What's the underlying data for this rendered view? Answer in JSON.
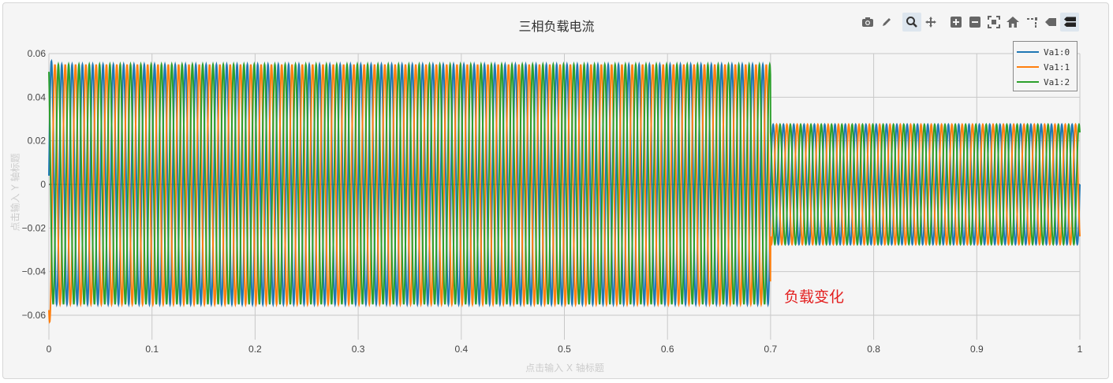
{
  "toolbar": {
    "icons": [
      "camera-icon",
      "pencil-icon",
      "zoom-icon",
      "pan-icon",
      "zoom-in-icon",
      "zoom-out-icon",
      "autoscale-icon",
      "home-icon",
      "spike-lines-icon",
      "hover-closest-icon",
      "hover-compare-icon"
    ],
    "active": [
      "zoom-icon",
      "hover-compare-icon"
    ]
  },
  "chart_data": {
    "type": "line",
    "title": "三相负载电流",
    "xlabel": "点击输入 X 轴标题",
    "ylabel": "点击输入 Y 轴标题",
    "xlim": [
      0,
      1
    ],
    "ylim": [
      -0.068,
      0.062
    ],
    "xticks": [
      "0",
      "0.1",
      "0.2",
      "0.3",
      "0.4",
      "0.5",
      "0.6",
      "0.7",
      "0.8",
      "0.9",
      "1"
    ],
    "xtick_values": [
      0,
      0.1,
      0.2,
      0.3,
      0.4,
      0.5,
      0.6,
      0.7,
      0.8,
      0.9,
      1
    ],
    "yticks": [
      "−0.06",
      "−0.04",
      "−0.02",
      "0",
      "0.02",
      "0.04",
      "0.06"
    ],
    "ytick_values": [
      -0.06,
      -0.04,
      -0.02,
      0,
      0.02,
      0.04,
      0.06
    ],
    "grid": true,
    "legend_position": "top-right",
    "frequency_hz": 100,
    "step_time": 0.7,
    "series": [
      {
        "name": "Va1:0",
        "color": "#1f77b4",
        "phase_deg": 0,
        "amplitude_before": 0.055,
        "amplitude_after": 0.0275
      },
      {
        "name": "Va1:1",
        "color": "#ff7f0e",
        "phase_deg": -120,
        "amplitude_before": 0.055,
        "amplitude_after": 0.0275
      },
      {
        "name": "Va1:2",
        "color": "#2ca02c",
        "phase_deg": 120,
        "amplitude_before": 0.055,
        "amplitude_after": 0.0275
      }
    ],
    "annotations": [
      {
        "text": "负载变化",
        "x": 0.71,
        "y": -0.05,
        "color": "#e32020"
      }
    ]
  }
}
